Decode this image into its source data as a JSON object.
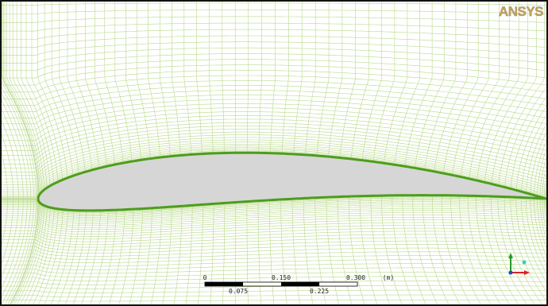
{
  "logo": "ANSYS",
  "scale_bar": {
    "top_labels": [
      "0",
      "0.150",
      "0.300"
    ],
    "unit": "(m)",
    "bottom_labels": [
      "0.075",
      "0.225"
    ]
  }
}
